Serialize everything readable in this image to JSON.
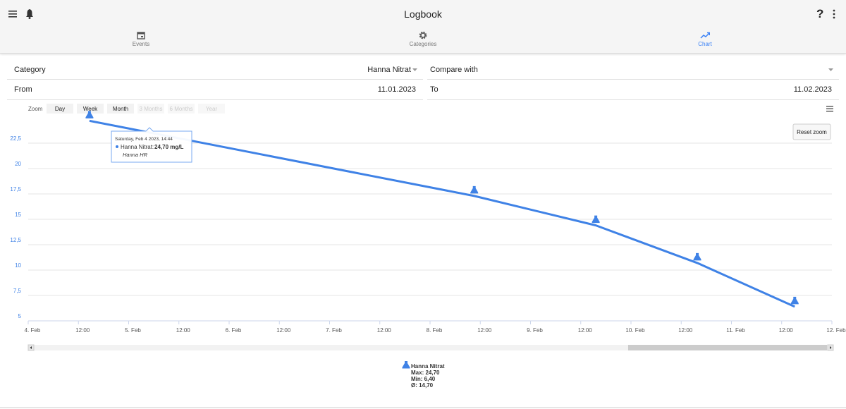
{
  "header": {
    "title": "Logbook",
    "help": "?"
  },
  "tabs": [
    {
      "label": "Events",
      "active": false
    },
    {
      "label": "Categories",
      "active": false
    },
    {
      "label": "Chart",
      "active": true
    }
  ],
  "form": {
    "category_label": "Category",
    "category_value": "Hanna Nitrat",
    "compare_label": "Compare with",
    "from_label": "From",
    "from_value": "11.01.2023",
    "to_label": "To",
    "to_value": "11.02.2023"
  },
  "zoom": {
    "label": "Zoom",
    "buttons": [
      {
        "label": "Day",
        "enabled": true
      },
      {
        "label": "Week",
        "enabled": true
      },
      {
        "label": "Month",
        "enabled": true
      },
      {
        "label": "3 Months",
        "enabled": false
      },
      {
        "label": "6 Months",
        "enabled": false
      },
      {
        "label": "Year",
        "enabled": false
      }
    ],
    "reset": "Reset zoom"
  },
  "chart_data": {
    "type": "line",
    "x": [
      0.61,
      4.44,
      5.65,
      6.66,
      7.63
    ],
    "series": [
      {
        "name": "Hanna Nitrat",
        "color": "#3f82e6",
        "values": [
          24.7,
          17.3,
          14.4,
          10.7,
          6.4
        ]
      }
    ],
    "xlim": [
      0,
      8
    ],
    "xticks": [
      {
        "value": 0,
        "label": "4. Feb"
      },
      {
        "value": 0.5,
        "label": "12:00"
      },
      {
        "value": 1,
        "label": "5. Feb"
      },
      {
        "value": 1.5,
        "label": "12:00"
      },
      {
        "value": 2,
        "label": "6. Feb"
      },
      {
        "value": 2.5,
        "label": "12:00"
      },
      {
        "value": 3,
        "label": "7. Feb"
      },
      {
        "value": 3.5,
        "label": "12:00"
      },
      {
        "value": 4,
        "label": "8. Feb"
      },
      {
        "value": 4.5,
        "label": "12:00"
      },
      {
        "value": 5,
        "label": "9. Feb"
      },
      {
        "value": 5.5,
        "label": "12:00"
      },
      {
        "value": 6,
        "label": "10. Feb"
      },
      {
        "value": 6.5,
        "label": "12:00"
      },
      {
        "value": 7,
        "label": "11. Feb"
      },
      {
        "value": 7.5,
        "label": "12:00"
      },
      {
        "value": 8,
        "label": "12. Feb"
      }
    ],
    "ylim": [
      5,
      25
    ],
    "yticks": [
      5,
      {
        "value": 7.5,
        "label": "7,5"
      },
      10,
      {
        "value": 12.5,
        "label": "12,5"
      },
      15,
      {
        "value": 17.5,
        "label": "17,5"
      },
      20,
      {
        "value": 22.5,
        "label": "22,5"
      }
    ],
    "grid": true,
    "tooltip": {
      "date": "Saturday, Feb 4 2023, 14:44",
      "series_label": "Hanna Nitrat:",
      "value": "24,70 mg/L",
      "note": "Hanna HR"
    },
    "summary": [
      "Max: 24,70",
      "Min: 6,40",
      "Ø: 14,70"
    ]
  }
}
